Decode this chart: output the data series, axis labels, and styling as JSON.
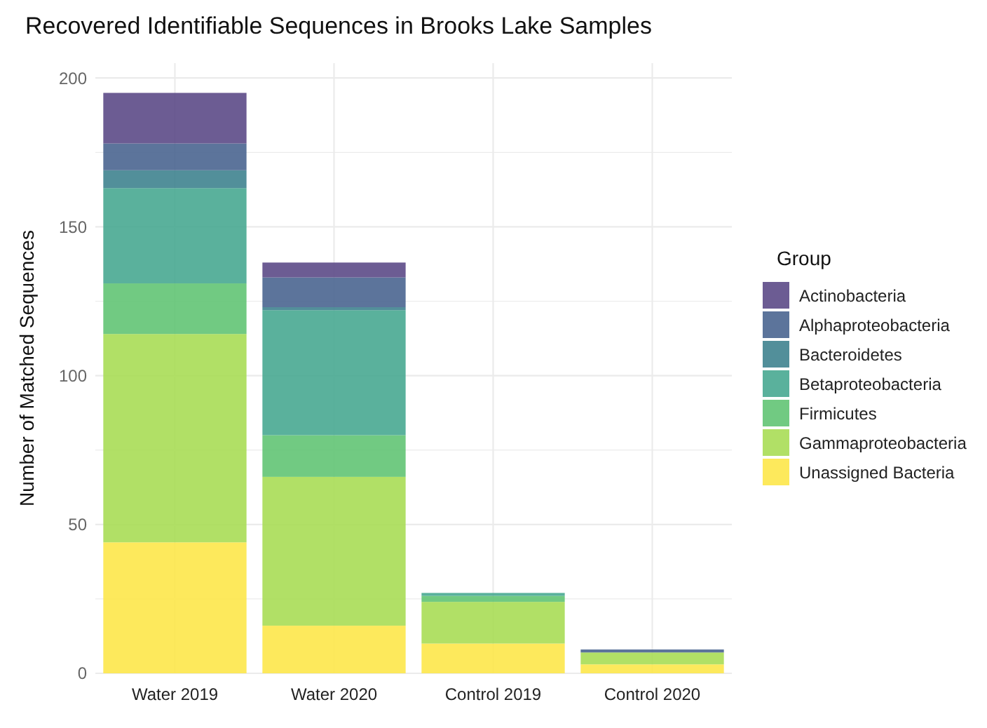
{
  "chart_data": {
    "type": "bar",
    "title": "Recovered Identifiable Sequences in Brooks Lake Samples",
    "ylabel": "Number of Matched Sequences",
    "legend_title": "Group",
    "categories": [
      "Water 2019",
      "Water 2020",
      "Control 2019",
      "Control 2020"
    ],
    "stacked": true,
    "series": [
      {
        "name": "Unassigned Bacteria",
        "color": "#fde74a",
        "values": [
          44,
          16,
          10,
          3
        ]
      },
      {
        "name": "Gammaproteobacteria",
        "color": "#a8dd55",
        "values": [
          70,
          50,
          14,
          4
        ]
      },
      {
        "name": "Firmicutes",
        "color": "#62c474",
        "values": [
          17,
          14,
          2,
          0
        ]
      },
      {
        "name": "Betaproteobacteria",
        "color": "#48a891",
        "values": [
          32,
          42,
          1,
          0
        ]
      },
      {
        "name": "Bacteroidetes",
        "color": "#3f838f",
        "values": [
          6,
          1,
          0,
          0
        ]
      },
      {
        "name": "Alphaproteobacteria",
        "color": "#4a6590",
        "values": [
          9,
          10,
          0,
          1
        ]
      },
      {
        "name": "Actinobacteria",
        "color": "#5c4a87",
        "values": [
          17,
          5,
          0,
          0
        ]
      }
    ],
    "ylim": [
      0,
      205
    ],
    "yticks": [
      0,
      {
        "value": 25,
        "label": null
      },
      50,
      {
        "value": 75,
        "label": null
      },
      100,
      {
        "value": 125,
        "label": null
      },
      150,
      {
        "value": 175,
        "label": null
      },
      200
    ],
    "grid": true,
    "legend": "right"
  }
}
